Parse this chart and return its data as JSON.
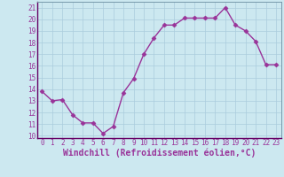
{
  "x": [
    0,
    1,
    2,
    3,
    4,
    5,
    6,
    7,
    8,
    9,
    10,
    11,
    12,
    13,
    14,
    15,
    16,
    17,
    18,
    19,
    20,
    21,
    22,
    23
  ],
  "y": [
    13.8,
    13.0,
    13.1,
    11.8,
    11.1,
    11.1,
    10.2,
    10.8,
    13.7,
    14.9,
    17.0,
    18.4,
    19.5,
    19.5,
    20.1,
    20.1,
    20.1,
    20.1,
    21.0,
    19.5,
    19.0,
    18.1,
    16.1,
    16.1
  ],
  "line_color": "#993399",
  "marker": "D",
  "marker_size": 2.5,
  "bg_color": "#cce8f0",
  "grid_color": "#aaccdd",
  "xlabel": "Windchill (Refroidissement éolien,°C)",
  "xlim": [
    -0.5,
    23.5
  ],
  "ylim": [
    9.8,
    21.5
  ],
  "yticks": [
    10,
    11,
    12,
    13,
    14,
    15,
    16,
    17,
    18,
    19,
    20,
    21
  ],
  "xticks": [
    0,
    1,
    2,
    3,
    4,
    5,
    6,
    7,
    8,
    9,
    10,
    11,
    12,
    13,
    14,
    15,
    16,
    17,
    18,
    19,
    20,
    21,
    22,
    23
  ],
  "tick_label_fontsize": 5.5,
  "xlabel_fontsize": 7.0,
  "line_width": 1.0,
  "spine_color": "#7799aa",
  "axis_bottom_color": "#660066"
}
